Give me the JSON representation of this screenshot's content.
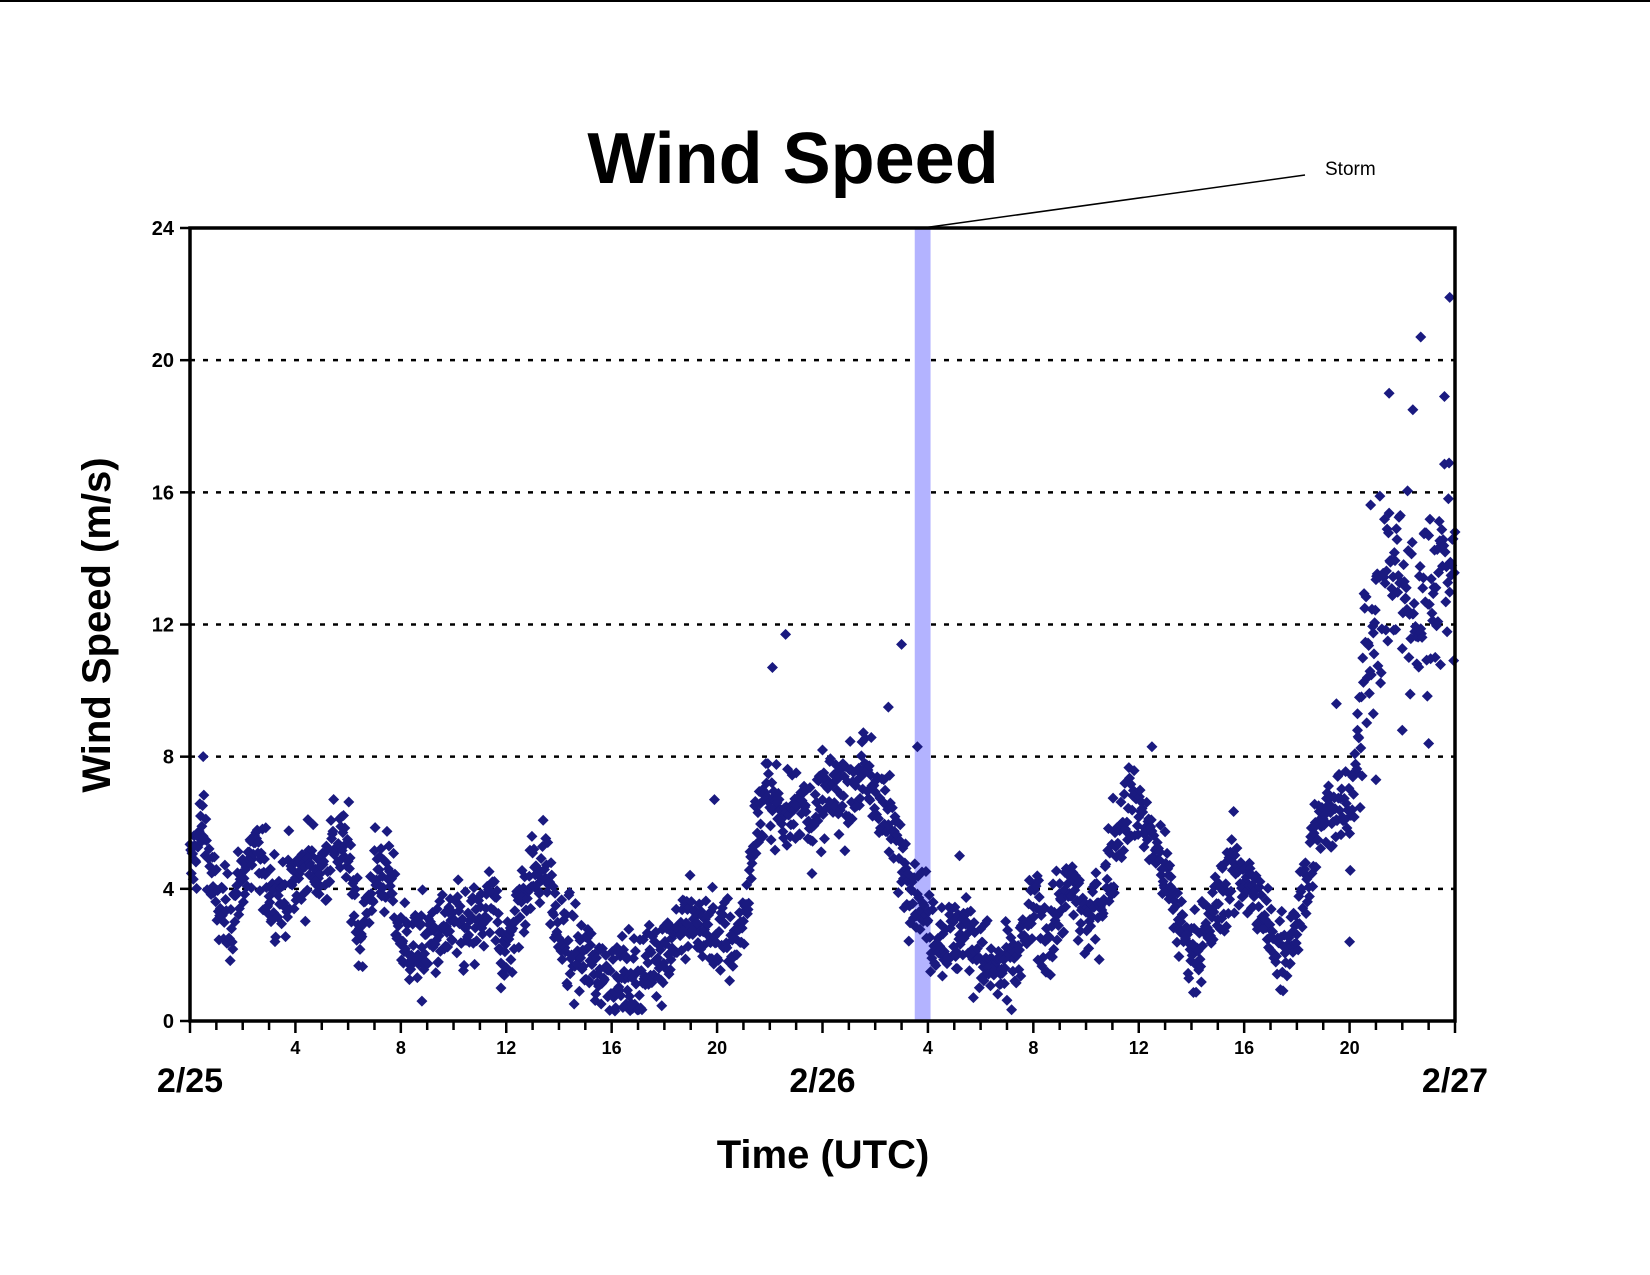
{
  "chart_data": {
    "type": "scatter",
    "title": "Wind Speed",
    "xlabel": "Time (UTC)",
    "ylabel": "Wind Speed (m/s)",
    "ylim": [
      0,
      24
    ],
    "xlim_hours": [
      0,
      48
    ],
    "y_ticks": [
      0,
      4,
      8,
      12,
      16,
      20,
      24
    ],
    "y_tick_labels": [
      "0",
      "4",
      "8",
      "12",
      "16",
      "20",
      "24"
    ],
    "grid": "horizontal dotted lines at 4, 8, 12, 16, 20",
    "hour_tick_labels": [
      {
        "hour": 4,
        "label": "4"
      },
      {
        "hour": 8,
        "label": "8"
      },
      {
        "hour": 12,
        "label": "12"
      },
      {
        "hour": 16,
        "label": "16"
      },
      {
        "hour": 20,
        "label": "20"
      },
      {
        "hour": 28,
        "label": "4"
      },
      {
        "hour": 32,
        "label": "8"
      },
      {
        "hour": 36,
        "label": "12"
      },
      {
        "hour": 40,
        "label": "16"
      },
      {
        "hour": 44,
        "label": "20"
      }
    ],
    "date_labels": [
      {
        "hour": 0,
        "label": "2/25"
      },
      {
        "hour": 24,
        "label": "2/26"
      },
      {
        "hour": 48,
        "label": "2/27"
      }
    ],
    "annotation": {
      "label": "Storm",
      "start_hour": 27.5,
      "end_hour": 28.1,
      "color": "#b3b3ff"
    },
    "marker_color": "#1a1a80",
    "series": [
      {
        "points_per_hour": 40,
        "noise_m_s": 0.9,
        "trend": {
          "x_hours": [
            0,
            0.5,
            1,
            1.5,
            2,
            2.5,
            3,
            3.5,
            4,
            4.5,
            5,
            5.5,
            6,
            6.5,
            7,
            7.5,
            8,
            8.5,
            9,
            9.5,
            10,
            10.5,
            11,
            11.5,
            12,
            12.5,
            13,
            13.5,
            14,
            14.5,
            15,
            15.5,
            16,
            16.5,
            17,
            17.5,
            18,
            18.5,
            19,
            19.5,
            20,
            20.5,
            21,
            21.5,
            22,
            22.5,
            23,
            23.5,
            24,
            24.5,
            25,
            25.5,
            26,
            26.5,
            27,
            27.5,
            28,
            28.5,
            29,
            29.5,
            30,
            30.5,
            31,
            31.5,
            32,
            32.5,
            33,
            33.5,
            34,
            34.5,
            35,
            35.5,
            36,
            36.5,
            37,
            37.5,
            38,
            38.5,
            39,
            39.5,
            40,
            40.5,
            41,
            41.5,
            42,
            42.5,
            43,
            43.5,
            44,
            44.5,
            45,
            45.5,
            46,
            46.5,
            47,
            47.5,
            48
          ],
          "y_m_s": [
            4.5,
            6.0,
            3.5,
            3.0,
            4.5,
            5.0,
            4.0,
            3.8,
            4.2,
            4.8,
            4.5,
            5.5,
            5.0,
            2.5,
            4.5,
            4.5,
            2.5,
            2.2,
            2.4,
            2.6,
            2.8,
            2.6,
            3.0,
            3.5,
            2.0,
            3.5,
            4.5,
            4.8,
            2.5,
            2.2,
            1.8,
            1.6,
            1.5,
            1.2,
            1.2,
            1.8,
            2.2,
            2.8,
            3.0,
            2.8,
            2.6,
            2.2,
            3.0,
            6.0,
            7.0,
            6.0,
            7.0,
            6.0,
            6.5,
            7.0,
            7.0,
            7.5,
            7.0,
            6.0,
            5.0,
            4.0,
            3.0,
            2.5,
            2.5,
            2.8,
            2.0,
            1.5,
            1.5,
            2.0,
            3.5,
            2.5,
            3.5,
            4.0,
            3.0,
            3.5,
            5.0,
            6.5,
            6.5,
            5.5,
            4.5,
            3.0,
            2.2,
            2.5,
            3.5,
            4.5,
            4.5,
            3.5,
            2.5,
            2.2,
            3.0,
            5.0,
            6.0,
            6.5,
            6.0,
            10.5,
            12.5,
            13.5,
            13.5,
            12.5,
            13.0,
            14.0,
            14.5
          ]
        },
        "outliers": [
          {
            "x": 47.8,
            "y": 21.9
          },
          {
            "x": 46.7,
            "y": 20.7
          },
          {
            "x": 45.5,
            "y": 19.0
          },
          {
            "x": 46.4,
            "y": 18.5
          },
          {
            "x": 47.6,
            "y": 18.9
          },
          {
            "x": 43.5,
            "y": 9.6
          },
          {
            "x": 44.0,
            "y": 2.4
          },
          {
            "x": 29.2,
            "y": 5.0
          },
          {
            "x": 44.3,
            "y": 8.8
          },
          {
            "x": 11.8,
            "y": 1.0
          },
          {
            "x": 8.8,
            "y": 0.6
          },
          {
            "x": 22.1,
            "y": 10.7
          },
          {
            "x": 22.6,
            "y": 11.7
          },
          {
            "x": 27.0,
            "y": 11.4
          },
          {
            "x": 26.5,
            "y": 9.5
          },
          {
            "x": 19.9,
            "y": 6.7
          },
          {
            "x": 24.0,
            "y": 8.2
          },
          {
            "x": 27.6,
            "y": 8.3
          },
          {
            "x": 45.0,
            "y": 7.3
          },
          {
            "x": 44.9,
            "y": 9.3
          },
          {
            "x": 46.0,
            "y": 8.8
          },
          {
            "x": 47.0,
            "y": 8.4
          },
          {
            "x": 0.5,
            "y": 8.0
          },
          {
            "x": 36.5,
            "y": 8.3
          }
        ]
      }
    ]
  }
}
